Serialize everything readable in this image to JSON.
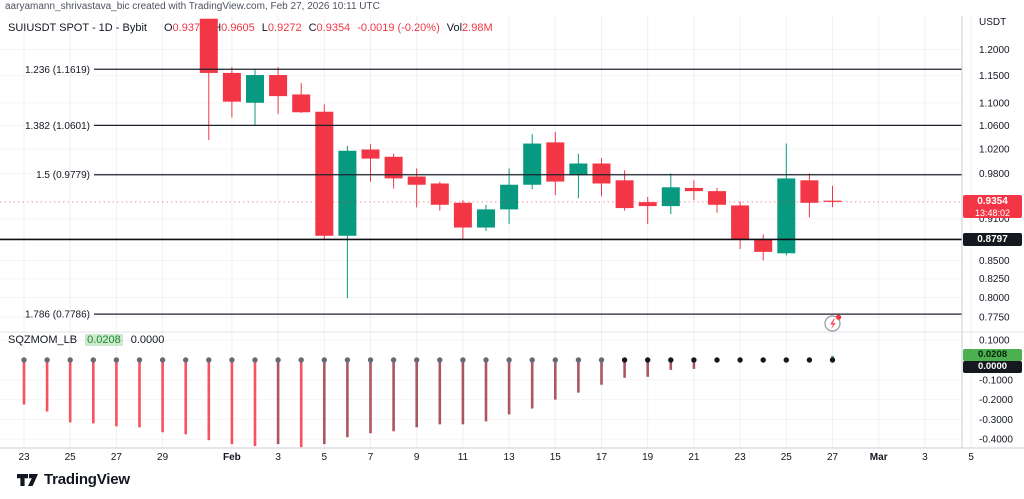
{
  "attribution": "aaryamann_shrivastava_bic created with TradingView.com, Feb 27, 2026 10:11 UTC",
  "legend": {
    "symbol": "SUIUSDT SPOT - 1D - Bybit",
    "open_label": "O",
    "open": "0.9373",
    "high_label": "H",
    "high": "0.9605",
    "low_label": "L",
    "low": "0.9272",
    "close_label": "C",
    "close": "0.9354",
    "change": "-0.0019 (-0.20%)",
    "volume_label": "Vol",
    "volume": "2.98M"
  },
  "indicator_legend": {
    "name": "SQZMOM_LB",
    "value": "0.0208",
    "value2": "0.0000"
  },
  "price_axis": {
    "currency": "USDT",
    "ticks": [
      {
        "label": "1.2000",
        "value": 1.2
      },
      {
        "label": "1.1500",
        "value": 1.15
      },
      {
        "label": "1.1000",
        "value": 1.1
      },
      {
        "label": "1.0600",
        "value": 1.06
      },
      {
        "label": "1.0200",
        "value": 1.02
      },
      {
        "label": "0.9800",
        "value": 0.98
      },
      {
        "label": "0.9100",
        "value": 0.91
      },
      {
        "label": "0.8500",
        "value": 0.85
      },
      {
        "label": "0.8250",
        "value": 0.825
      },
      {
        "label": "0.8000",
        "value": 0.8
      },
      {
        "label": "0.7750",
        "value": 0.775
      }
    ],
    "last_price_badge": {
      "price": "0.9354",
      "countdown": "13:48:02"
    },
    "level_badge": "0.8797",
    "momentum_badge": "0.0208",
    "momentum_zero_badge": "0.0000",
    "lower_ticks": [
      {
        "label": "0.1000",
        "value": 0.1
      },
      {
        "label": "-0.1000",
        "value": -0.1
      },
      {
        "label": "-0.2000",
        "value": -0.2
      },
      {
        "label": "-0.3000",
        "value": -0.3
      },
      {
        "label": "-0.4000",
        "value": -0.4
      }
    ]
  },
  "time_axis": {
    "ticks": [
      {
        "label": "23",
        "i": 0
      },
      {
        "label": "25",
        "i": 2
      },
      {
        "label": "27",
        "i": 4
      },
      {
        "label": "29",
        "i": 6
      },
      {
        "label": "Feb",
        "i": 9,
        "bold": true
      },
      {
        "label": "3",
        "i": 11
      },
      {
        "label": "5",
        "i": 13
      },
      {
        "label": "7",
        "i": 15
      },
      {
        "label": "9",
        "i": 17
      },
      {
        "label": "11",
        "i": 19
      },
      {
        "label": "13",
        "i": 21
      },
      {
        "label": "15",
        "i": 23
      },
      {
        "label": "17",
        "i": 25
      },
      {
        "label": "19",
        "i": 27
      },
      {
        "label": "21",
        "i": 29
      },
      {
        "label": "23",
        "i": 31
      },
      {
        "label": "25",
        "i": 33
      },
      {
        "label": "27",
        "i": 35
      },
      {
        "label": "Mar",
        "i": 37,
        "bold": true
      },
      {
        "label": "3",
        "i": 39
      },
      {
        "label": "5",
        "i": 41
      }
    ]
  },
  "fib_levels": [
    {
      "label": "1.236 (1.1619)",
      "price": 1.1619
    },
    {
      "label": "1.382 (1.0601)",
      "price": 1.0601
    },
    {
      "label": "1.5 (0.9779)",
      "price": 0.9779
    },
    {
      "label": "1.786 (0.7786)",
      "price": 0.7786
    }
  ],
  "support_level": {
    "price": 0.8797
  },
  "current_price": 0.9354,
  "watermark": "TradingView",
  "colors": {
    "candle_up": "#089981",
    "candle_down": "#f23645",
    "hist_red": "#f7525f",
    "hist_maroon": "#ac5661",
    "hist_lime": "#4caf50",
    "dot_gray": "#656a74",
    "dot_black": "#15181e",
    "badge_red": "#f23645",
    "badge_black": "#15181e",
    "badge_green": "#4caf50",
    "fib_line": "#1e222d",
    "axis_text": "#131722"
  },
  "chart_data": {
    "type": "candlestick",
    "title": "SUIUSDT SPOT - 1D - Bybit",
    "price_scale": "log",
    "ylabel": "USDT",
    "ylim": [
      0.775,
      1.2
    ],
    "candles": [
      {
        "i": 8,
        "date": "Jan 31",
        "o": 1.262,
        "h": 1.262,
        "l": 1.035,
        "c": 1.155
      },
      {
        "i": 9,
        "date": "Feb 1",
        "o": 1.155,
        "h": 1.166,
        "l": 1.074,
        "c": 1.102
      },
      {
        "i": 10,
        "date": "Feb 2",
        "o": 1.1,
        "h": 1.162,
        "l": 1.06,
        "c": 1.151
      },
      {
        "i": 11,
        "date": "Feb 3",
        "o": 1.151,
        "h": 1.166,
        "l": 1.08,
        "c": 1.112
      },
      {
        "i": 12,
        "date": "Feb 4",
        "o": 1.115,
        "h": 1.136,
        "l": 1.082,
        "c": 1.083
      },
      {
        "i": 13,
        "date": "Feb 5",
        "o": 1.084,
        "h": 1.097,
        "l": 0.879,
        "c": 0.885
      },
      {
        "i": 14,
        "date": "Feb 6",
        "o": 0.885,
        "h": 1.025,
        "l": 0.799,
        "c": 1.017
      },
      {
        "i": 15,
        "date": "Feb 7",
        "o": 1.019,
        "h": 1.028,
        "l": 0.967,
        "c": 1.004
      },
      {
        "i": 16,
        "date": "Feb 8",
        "o": 1.007,
        "h": 1.012,
        "l": 0.956,
        "c": 0.972
      },
      {
        "i": 17,
        "date": "Feb 9",
        "o": 0.975,
        "h": 0.988,
        "l": 0.927,
        "c": 0.962
      },
      {
        "i": 18,
        "date": "Feb 10",
        "o": 0.964,
        "h": 0.967,
        "l": 0.922,
        "c": 0.931
      },
      {
        "i": 19,
        "date": "Feb 11",
        "o": 0.934,
        "h": 0.938,
        "l": 0.88,
        "c": 0.897
      },
      {
        "i": 20,
        "date": "Feb 12",
        "o": 0.897,
        "h": 0.931,
        "l": 0.892,
        "c": 0.924
      },
      {
        "i": 21,
        "date": "Feb 13",
        "o": 0.924,
        "h": 0.988,
        "l": 0.902,
        "c": 0.962
      },
      {
        "i": 22,
        "date": "Feb 14",
        "o": 0.962,
        "h": 1.045,
        "l": 0.955,
        "c": 1.029
      },
      {
        "i": 23,
        "date": "Feb 15",
        "o": 1.031,
        "h": 1.049,
        "l": 0.946,
        "c": 0.967
      },
      {
        "i": 24,
        "date": "Feb 16",
        "o": 0.977,
        "h": 1.012,
        "l": 0.941,
        "c": 0.996
      },
      {
        "i": 25,
        "date": "Feb 17",
        "o": 0.996,
        "h": 1.005,
        "l": 0.944,
        "c": 0.964
      },
      {
        "i": 26,
        "date": "Feb 18",
        "o": 0.969,
        "h": 0.985,
        "l": 0.922,
        "c": 0.926
      },
      {
        "i": 27,
        "date": "Feb 19",
        "o": 0.935,
        "h": 0.943,
        "l": 0.902,
        "c": 0.929
      },
      {
        "i": 28,
        "date": "Feb 20",
        "o": 0.929,
        "h": 0.98,
        "l": 0.917,
        "c": 0.958
      },
      {
        "i": 29,
        "date": "Feb 21",
        "o": 0.957,
        "h": 0.969,
        "l": 0.938,
        "c": 0.952
      },
      {
        "i": 30,
        "date": "Feb 22",
        "o": 0.952,
        "h": 0.957,
        "l": 0.919,
        "c": 0.931
      },
      {
        "i": 31,
        "date": "Feb 23",
        "o": 0.93,
        "h": 0.936,
        "l": 0.866,
        "c": 0.88
      },
      {
        "i": 32,
        "date": "Feb 24",
        "o": 0.88,
        "h": 0.887,
        "l": 0.85,
        "c": 0.862
      },
      {
        "i": 33,
        "date": "Feb 25",
        "o": 0.86,
        "h": 1.029,
        "l": 0.857,
        "c": 0.972
      },
      {
        "i": 34,
        "date": "Feb 26",
        "o": 0.969,
        "h": 0.98,
        "l": 0.912,
        "c": 0.934
      },
      {
        "i": 35,
        "date": "Feb 27",
        "o": 0.9373,
        "h": 0.9605,
        "l": 0.9272,
        "c": 0.9354
      }
    ],
    "momentum_histogram": {
      "name": "SQZMOM_LB",
      "ylim": [
        -0.45,
        0.1
      ],
      "bars": [
        {
          "i": 0,
          "date": "Jan 23",
          "v": -0.225,
          "bar": "red",
          "dot": "gray"
        },
        {
          "i": 1,
          "date": "Jan 24",
          "v": -0.26,
          "bar": "red",
          "dot": "gray"
        },
        {
          "i": 2,
          "date": "Jan 25",
          "v": -0.315,
          "bar": "red",
          "dot": "gray"
        },
        {
          "i": 3,
          "date": "Jan 26",
          "v": -0.32,
          "bar": "red",
          "dot": "gray"
        },
        {
          "i": 4,
          "date": "Jan 27",
          "v": -0.335,
          "bar": "red",
          "dot": "gray"
        },
        {
          "i": 5,
          "date": "Jan 28",
          "v": -0.34,
          "bar": "red",
          "dot": "gray"
        },
        {
          "i": 6,
          "date": "Jan 29",
          "v": -0.365,
          "bar": "red",
          "dot": "gray"
        },
        {
          "i": 7,
          "date": "Jan 30",
          "v": -0.375,
          "bar": "red",
          "dot": "gray"
        },
        {
          "i": 8,
          "date": "Jan 31",
          "v": -0.405,
          "bar": "red",
          "dot": "gray"
        },
        {
          "i": 9,
          "date": "Feb 1",
          "v": -0.425,
          "bar": "red",
          "dot": "gray"
        },
        {
          "i": 10,
          "date": "Feb 2",
          "v": -0.435,
          "bar": "red",
          "dot": "gray"
        },
        {
          "i": 11,
          "date": "Feb 3",
          "v": -0.425,
          "bar": "maroon",
          "dot": "gray"
        },
        {
          "i": 12,
          "date": "Feb 4",
          "v": -0.44,
          "bar": "red",
          "dot": "gray"
        },
        {
          "i": 13,
          "date": "Feb 5",
          "v": -0.425,
          "bar": "maroon",
          "dot": "gray"
        },
        {
          "i": 14,
          "date": "Feb 6",
          "v": -0.39,
          "bar": "maroon",
          "dot": "gray"
        },
        {
          "i": 15,
          "date": "Feb 7",
          "v": -0.37,
          "bar": "maroon",
          "dot": "gray"
        },
        {
          "i": 16,
          "date": "Feb 8",
          "v": -0.36,
          "bar": "maroon",
          "dot": "gray"
        },
        {
          "i": 17,
          "date": "Feb 9",
          "v": -0.34,
          "bar": "maroon",
          "dot": "gray"
        },
        {
          "i": 18,
          "date": "Feb 10",
          "v": -0.325,
          "bar": "maroon",
          "dot": "gray"
        },
        {
          "i": 19,
          "date": "Feb 11",
          "v": -0.325,
          "bar": "maroon",
          "dot": "gray"
        },
        {
          "i": 20,
          "date": "Feb 12",
          "v": -0.31,
          "bar": "maroon",
          "dot": "gray"
        },
        {
          "i": 21,
          "date": "Feb 13",
          "v": -0.275,
          "bar": "maroon",
          "dot": "gray"
        },
        {
          "i": 22,
          "date": "Feb 14",
          "v": -0.245,
          "bar": "maroon",
          "dot": "gray"
        },
        {
          "i": 23,
          "date": "Feb 15",
          "v": -0.2,
          "bar": "maroon",
          "dot": "gray"
        },
        {
          "i": 24,
          "date": "Feb 16",
          "v": -0.165,
          "bar": "maroon",
          "dot": "gray"
        },
        {
          "i": 25,
          "date": "Feb 17",
          "v": -0.125,
          "bar": "maroon",
          "dot": "gray"
        },
        {
          "i": 26,
          "date": "Feb 18",
          "v": -0.09,
          "bar": "maroon",
          "dot": "black"
        },
        {
          "i": 27,
          "date": "Feb 19",
          "v": -0.085,
          "bar": "maroon",
          "dot": "black"
        },
        {
          "i": 28,
          "date": "Feb 20",
          "v": -0.05,
          "bar": "maroon",
          "dot": "black"
        },
        {
          "i": 29,
          "date": "Feb 21",
          "v": -0.045,
          "bar": "maroon",
          "dot": "black"
        },
        {
          "i": 30,
          "date": "Feb 22",
          "v": 0.0,
          "bar": "none",
          "dot": "black"
        },
        {
          "i": 31,
          "date": "Feb 23",
          "v": 0.0,
          "bar": "none",
          "dot": "black"
        },
        {
          "i": 32,
          "date": "Feb 24",
          "v": 0.0,
          "bar": "none",
          "dot": "black"
        },
        {
          "i": 33,
          "date": "Feb 25",
          "v": 0.0,
          "bar": "none",
          "dot": "black"
        },
        {
          "i": 34,
          "date": "Feb 26",
          "v": 0.0,
          "bar": "none",
          "dot": "black"
        },
        {
          "i": 35,
          "date": "Feb 27",
          "v": 0.0208,
          "bar": "lime",
          "dot": "black"
        }
      ]
    }
  }
}
